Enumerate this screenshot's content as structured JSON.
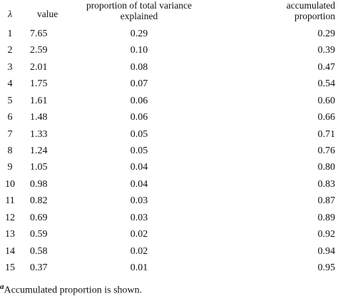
{
  "table": {
    "header": [
      "λ",
      "value",
      "proportion of total variance explained",
      "accumulated proportion"
    ],
    "rows": [
      [
        "1",
        "7.65",
        "0.29",
        "0.29"
      ],
      [
        "2",
        "2.59",
        "0.10",
        "0.39"
      ],
      [
        "3",
        "2.01",
        "0.08",
        "0.47"
      ],
      [
        "4",
        "1.75",
        "0.07",
        "0.54"
      ],
      [
        "5",
        "1.61",
        "0.06",
        "0.60"
      ],
      [
        "6",
        "1.48",
        "0.06",
        "0.66"
      ],
      [
        "7",
        "1.33",
        "0.05",
        "0.71"
      ],
      [
        "8",
        "1.24",
        "0.05",
        "0.76"
      ],
      [
        "9",
        "1.05",
        "0.04",
        "0.80"
      ],
      [
        "10",
        "0.98",
        "0.04",
        "0.83"
      ],
      [
        "11",
        "0.82",
        "0.03",
        "0.87"
      ],
      [
        "12",
        "0.69",
        "0.03",
        "0.89"
      ],
      [
        "13",
        "0.59",
        "0.02",
        "0.92"
      ],
      [
        "14",
        "0.58",
        "0.02",
        "0.94"
      ],
      [
        "15",
        "0.37",
        "0.01",
        "0.95"
      ]
    ]
  },
  "footnote": {
    "marker": "a",
    "text": "Accumulated proportion is shown."
  }
}
